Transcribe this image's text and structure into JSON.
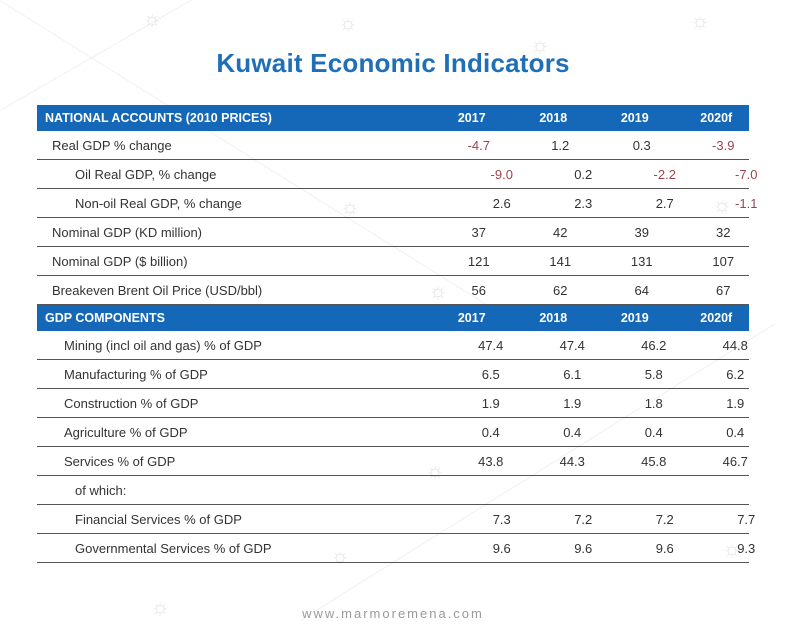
{
  "title": "Kuwait Economic Indicators",
  "section1": {
    "header": "NATIONAL ACCOUNTS (2010 PRICES)",
    "years": [
      "2017",
      "2018",
      "2019",
      "2020f"
    ],
    "rows": [
      {
        "label": "Real GDP % change",
        "values": [
          "-4.7",
          "1.2",
          "0.3",
          "-3.9"
        ]
      },
      {
        "label": "Oil Real GDP, % change",
        "values": [
          "-9.0",
          "0.2",
          "-2.2",
          "-7.0"
        ]
      },
      {
        "label": "Non-oil Real GDP, % change",
        "values": [
          "2.6",
          "2.3",
          "2.7",
          "-1.1"
        ]
      },
      {
        "label": "Nominal GDP (KD million)",
        "values": [
          "37",
          "42",
          "39",
          "32"
        ]
      },
      {
        "label": "Nominal GDP ($ billion)",
        "values": [
          "121",
          "141",
          "131",
          "107"
        ]
      },
      {
        "label": "Breakeven Brent Oil Price (USD/bbl)",
        "values": [
          "56",
          "62",
          "64",
          "67"
        ]
      }
    ]
  },
  "section2": {
    "header": "GDP COMPONENTS",
    "years": [
      "2017",
      "2018",
      "2019",
      "2020f"
    ],
    "rows": [
      {
        "label": "Mining (incl oil and gas)  % of GDP",
        "values": [
          "47.4",
          "47.4",
          "46.2",
          "44.8"
        ]
      },
      {
        "label": "Manufacturing  % of GDP",
        "values": [
          "6.5",
          "6.1",
          "5.8",
          "6.2"
        ]
      },
      {
        "label": "Construction  % of GDP",
        "values": [
          "1.9",
          "1.9",
          "1.8",
          "1.9"
        ]
      },
      {
        "label": "Agriculture  % of GDP",
        "values": [
          "0.4",
          "0.4",
          "0.4",
          "0.4"
        ]
      },
      {
        "label": "Services  % of GDP",
        "values": [
          "43.8",
          "44.3",
          "45.8",
          "46.7"
        ]
      },
      {
        "label": "of which:",
        "values": [
          "",
          "",
          "",
          ""
        ]
      },
      {
        "label": "Financial Services  % of GDP",
        "values": [
          "7.3",
          "7.2",
          "7.2",
          "7.7"
        ]
      },
      {
        "label": "Governmental Services  % of GDP",
        "values": [
          "9.6",
          "9.6",
          "9.6",
          "9.3"
        ]
      }
    ]
  },
  "footer": "www.marmoremena.com",
  "colors": {
    "accent": "#1f6fb8",
    "header_bg": "#1567b7",
    "negative": "#a0434f"
  }
}
